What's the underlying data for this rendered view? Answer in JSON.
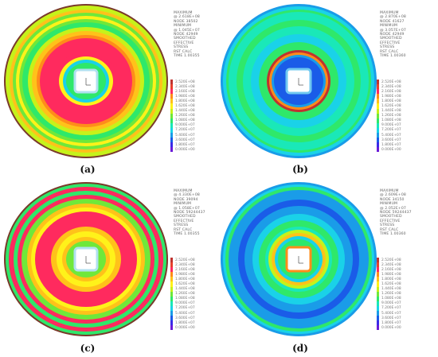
{
  "panels": [
    {
      "id": "a",
      "caption": "(a)",
      "legend": {
        "lines1": [
          "MAXIMUM",
          "@ 2.618E+08",
          "NODE 38502",
          "MINIMUM",
          "@ 1.045E+07",
          "NODE 42949"
        ],
        "lines2": [
          "SMOOTHED",
          "EFFECTIVE",
          "STRESS"
        ],
        "lines3": [
          "RST CALC",
          "TIME 1.00355"
        ]
      },
      "scale": [
        "2.520E+08",
        "2.340E+08",
        "2.160E+08",
        "1.980E+08",
        "1.800E+08",
        "1.620E+08",
        "1.440E+08",
        "1.260E+08",
        "1.080E+08",
        "9.000E+07",
        "7.200E+07",
        "5.400E+07",
        "3.600E+07",
        "1.800E+07",
        "0.000E+00"
      ]
    },
    {
      "id": "b",
      "caption": "(b)",
      "legend": {
        "lines1": [
          "MAXIMUM",
          "@ 2.870E+08",
          "NODE 41627",
          "MINIMUM",
          "@ 3.057E+07",
          "NODE 42949"
        ],
        "lines2": [
          "SMOOTHED",
          "EFFECTIVE",
          "STRESS"
        ],
        "lines3": [
          "RST CALC",
          "TIME 1.00360"
        ]
      },
      "scale": [
        "2.520E+08",
        "2.340E+08",
        "2.160E+08",
        "1.980E+08",
        "1.800E+08",
        "1.620E+08",
        "1.440E+08",
        "1.260E+08",
        "1.080E+08",
        "9.000E+07",
        "7.200E+07",
        "5.400E+07",
        "3.600E+07",
        "1.800E+07",
        "0.000E+00"
      ]
    },
    {
      "id": "c",
      "caption": "(c)",
      "legend": {
        "lines1": [
          "MAXIMUM",
          "@ 4.330E+08",
          "NODE 39094",
          "MINIMUM",
          "@ 1.058E+07",
          "NODE 59244437"
        ],
        "lines2": [
          "SMOOTHED",
          "EFFECTIVE",
          "STRESS"
        ],
        "lines3": [
          "RST CALC",
          "TIME 1.00355"
        ]
      },
      "scale": [
        "2.520E+08",
        "2.340E+08",
        "2.160E+08",
        "1.980E+08",
        "1.800E+08",
        "1.620E+08",
        "1.440E+08",
        "1.260E+08",
        "1.080E+08",
        "9.000E+07",
        "7.200E+07",
        "5.400E+07",
        "3.600E+07",
        "1.800E+07",
        "0.000E+00"
      ]
    },
    {
      "id": "d",
      "caption": "(d)",
      "legend": {
        "lines1": [
          "MAXIMUM",
          "@ 2.609E+08",
          "NODE 34150",
          "MINIMUM",
          "@ 2.052E+07",
          "NODE 59244437"
        ],
        "lines2": [
          "SMOOTHED",
          "EFFECTIVE",
          "STRESS"
        ],
        "lines3": [
          "RST CALC",
          "TIME 1.00360"
        ]
      },
      "scale": [
        "2.520E+08",
        "2.340E+08",
        "2.160E+08",
        "1.980E+08",
        "1.800E+08",
        "1.620E+08",
        "1.440E+08",
        "1.260E+08",
        "1.080E+08",
        "9.000E+07",
        "7.200E+07",
        "5.400E+07",
        "3.600E+07",
        "1.800E+07",
        "0.000E+00"
      ]
    }
  ],
  "scale_colors": [
    "#c0332f",
    "#e8402c",
    "#ff2a5e",
    "#ff8c1a",
    "#ffc21a",
    "#fff21a",
    "#c6f21a",
    "#6fe83a",
    "#2fe86a",
    "#1ae8b8",
    "#1ad2e8",
    "#1a9ce8",
    "#1a5ce8",
    "#3a2ae8",
    "#6a1ad8"
  ]
}
